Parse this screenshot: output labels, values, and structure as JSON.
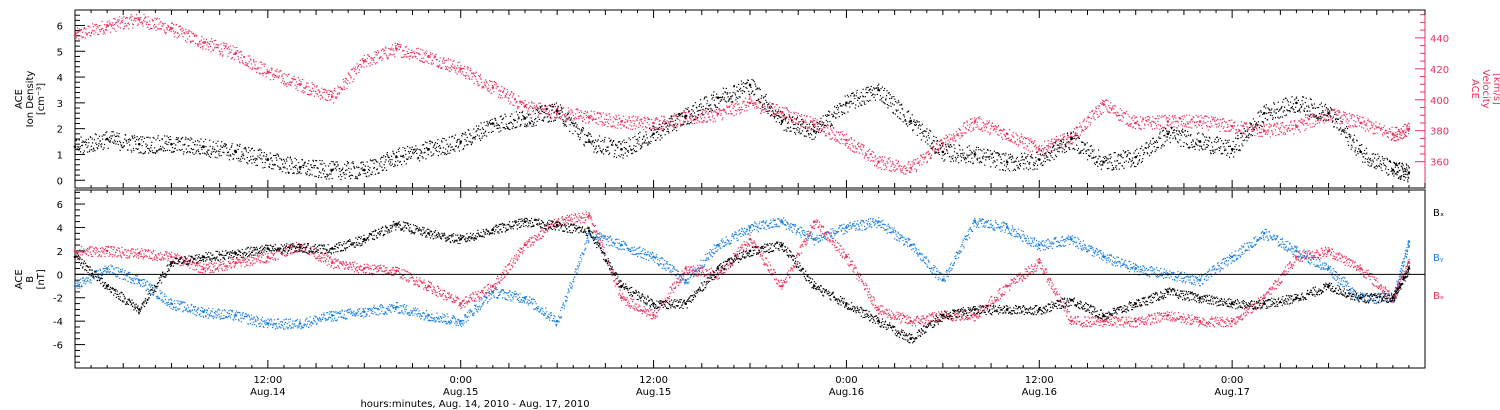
{
  "colors": {
    "black": "#000000",
    "red": "#e8325c",
    "blue": "#1a7fe0"
  },
  "xlabel": "hours:minutes, Aug. 14, 2010 - Aug. 17, 2010",
  "chart_data": [
    {
      "type": "scatter",
      "panel": "top",
      "ylabel_left": [
        "ACE",
        "Ion Density",
        "[cm⁻³]"
      ],
      "ylabel_right": [
        "ACE",
        "Velocity",
        "[km/s]"
      ],
      "yticks_left": [
        "0",
        "1",
        "2",
        "3",
        "4",
        "5",
        "6"
      ],
      "ylim_left": [
        -0.3,
        6.6
      ],
      "yticks_right": [
        "360",
        "380",
        "400",
        "420",
        "440"
      ],
      "ylim_right": [
        343,
        458
      ],
      "x_range_hours": [
        0,
        84
      ],
      "series": [
        {
          "name": "Ion Density",
          "axis": "left",
          "color": "#000000",
          "x": [
            0,
            2,
            4,
            6,
            8,
            10,
            12,
            14,
            16,
            18,
            20,
            22,
            24,
            26,
            28,
            30,
            32,
            34,
            36,
            38,
            40,
            42,
            44,
            46,
            48,
            50,
            52,
            54,
            56,
            58,
            60,
            62,
            64,
            66,
            68,
            70,
            72,
            74,
            76,
            78,
            80,
            82,
            83
          ],
          "values": [
            1.3,
            1.6,
            1.4,
            1.4,
            1.3,
            1.1,
            0.8,
            0.5,
            0.4,
            0.4,
            0.9,
            1.2,
            1.5,
            2.2,
            2.4,
            2.7,
            1.5,
            1.2,
            1.8,
            2.5,
            3.2,
            3.7,
            2.3,
            1.9,
            3.0,
            3.5,
            2.3,
            1.1,
            1.0,
            0.7,
            0.8,
            1.6,
            0.7,
            0.9,
            1.8,
            1.5,
            1.2,
            2.6,
            3.0,
            2.6,
            1.1,
            0.4,
            0.3
          ]
        },
        {
          "name": "Velocity",
          "axis": "right",
          "color": "#e8325c",
          "x": [
            0,
            2,
            4,
            6,
            8,
            10,
            12,
            14,
            16,
            18,
            20,
            22,
            24,
            26,
            28,
            30,
            32,
            34,
            36,
            38,
            40,
            42,
            44,
            46,
            48,
            50,
            52,
            54,
            56,
            58,
            60,
            62,
            64,
            66,
            68,
            70,
            72,
            74,
            76,
            78,
            80,
            82,
            83
          ],
          "values": [
            442,
            448,
            452,
            446,
            437,
            430,
            418,
            410,
            402,
            425,
            433,
            428,
            420,
            408,
            396,
            392,
            389,
            386,
            385,
            388,
            391,
            398,
            392,
            384,
            374,
            360,
            356,
            372,
            386,
            378,
            368,
            376,
            397,
            385,
            386,
            386,
            383,
            380,
            383,
            391,
            385,
            378,
            381
          ]
        }
      ]
    },
    {
      "type": "scatter",
      "panel": "bottom",
      "ylabel_left": [
        "ACE",
        "B",
        "[nT]"
      ],
      "yticks": [
        "-6",
        "-4",
        "-2",
        "0",
        "2",
        "4",
        "6"
      ],
      "ylim": [
        -8,
        7.2
      ],
      "x_range_hours": [
        0,
        84
      ],
      "legend": [
        "Bₓ",
        "Bᵧ",
        "Bₔ"
      ],
      "series": [
        {
          "name": "Bx",
          "color": "#000000",
          "x": [
            0,
            2,
            4,
            6,
            8,
            10,
            12,
            14,
            16,
            18,
            20,
            22,
            24,
            26,
            28,
            30,
            32,
            34,
            36,
            38,
            40,
            42,
            44,
            46,
            48,
            50,
            52,
            54,
            56,
            58,
            60,
            62,
            64,
            66,
            68,
            70,
            72,
            74,
            76,
            78,
            80,
            82,
            83
          ],
          "values": [
            1.5,
            -1.0,
            -3.0,
            1.0,
            1.5,
            1.8,
            2.2,
            2.3,
            2.2,
            3.0,
            4.3,
            3.5,
            3.0,
            3.8,
            4.5,
            4.2,
            3.7,
            -1.0,
            -2.5,
            -2.5,
            0.5,
            2.0,
            2.5,
            -1.0,
            -2.5,
            -4.0,
            -5.5,
            -3.5,
            -3.0,
            -3.0,
            -3.0,
            -2.2,
            -3.5,
            -2.5,
            -1.5,
            -2.0,
            -2.5,
            -2.5,
            -2.0,
            -1.0,
            -2.0,
            -2.0,
            0.5
          ]
        },
        {
          "name": "By",
          "color": "#1a7fe0",
          "x": [
            0,
            2,
            4,
            6,
            8,
            10,
            12,
            14,
            16,
            18,
            20,
            22,
            24,
            26,
            28,
            30,
            32,
            34,
            36,
            38,
            40,
            42,
            44,
            46,
            48,
            50,
            52,
            54,
            56,
            58,
            60,
            62,
            64,
            66,
            68,
            70,
            72,
            74,
            76,
            78,
            80,
            82,
            83
          ],
          "values": [
            -1.0,
            0.5,
            -0.5,
            -2.5,
            -3.2,
            -3.5,
            -4.2,
            -4.2,
            -3.5,
            -3.2,
            -2.8,
            -3.5,
            -4.0,
            -1.5,
            -2.0,
            -4.0,
            3.5,
            2.5,
            1.5,
            -0.5,
            2.5,
            4.0,
            4.5,
            3.0,
            4.0,
            4.5,
            2.5,
            -0.5,
            4.5,
            4.0,
            2.5,
            3.0,
            1.5,
            0.5,
            0.0,
            -0.5,
            1.5,
            3.5,
            2.0,
            0.5,
            -2.0,
            -2.0,
            2.8
          ]
        },
        {
          "name": "Bz",
          "color": "#e8325c",
          "x": [
            0,
            2,
            4,
            6,
            8,
            10,
            12,
            14,
            16,
            18,
            20,
            22,
            24,
            26,
            28,
            30,
            32,
            34,
            36,
            38,
            40,
            42,
            44,
            46,
            48,
            50,
            52,
            54,
            56,
            58,
            60,
            62,
            64,
            66,
            68,
            70,
            72,
            74,
            76,
            78,
            80,
            82,
            83
          ],
          "values": [
            2.0,
            2.0,
            1.8,
            1.5,
            0.5,
            1.0,
            1.5,
            2.5,
            1.0,
            0.5,
            0.3,
            -1.0,
            -2.5,
            -1.0,
            2.5,
            4.5,
            5.0,
            -2.0,
            -3.5,
            0.5,
            0.0,
            3.0,
            -1.0,
            4.5,
            1.5,
            -3.0,
            -4.0,
            -3.5,
            -3.5,
            -1.0,
            1.0,
            -4.0,
            -4.0,
            -4.0,
            -3.5,
            -4.0,
            -4.0,
            -2.0,
            1.5,
            2.0,
            0.5,
            -2.0,
            1.0
          ]
        }
      ]
    }
  ],
  "x_ticks": [
    {
      "hours": 12,
      "time": "12:00",
      "date": "Aug.14"
    },
    {
      "hours": 24,
      "time": "0:00",
      "date": "Aug.15"
    },
    {
      "hours": 36,
      "time": "12:00",
      "date": "Aug.15"
    },
    {
      "hours": 48,
      "time": "0:00",
      "date": "Aug.16"
    },
    {
      "hours": 60,
      "time": "12:00",
      "date": "Aug.16"
    },
    {
      "hours": 72,
      "time": "0:00",
      "date": "Aug.17"
    }
  ]
}
